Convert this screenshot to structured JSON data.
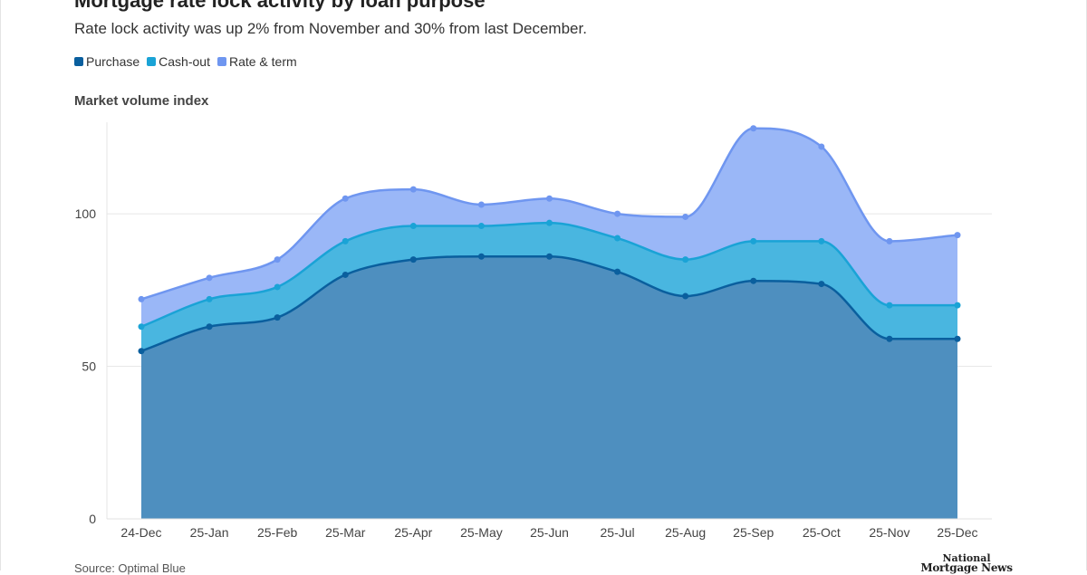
{
  "header": {
    "title": "Mortgage rate lock activity by loan purpose",
    "subtitle": "Rate lock activity was up 2% from November and 30% from last December."
  },
  "legend": [
    {
      "label": "Purchase",
      "color": "#0a5f9e"
    },
    {
      "label": "Cash-out",
      "color": "#1aa3d6"
    },
    {
      "label": "Rate & term",
      "color": "#6f96f0"
    }
  ],
  "footer": {
    "source": "Source: Optimal Blue",
    "logo_line1": "National",
    "logo_line2": "Mortgage News"
  },
  "chart_data": {
    "type": "area",
    "stacked": true,
    "title": "Mortgage rate lock activity by loan purpose",
    "ylabel": "Market volume index",
    "xlabel": "",
    "categories": [
      "24-Dec",
      "25-Jan",
      "25-Feb",
      "25-Mar",
      "25-Apr",
      "25-May",
      "25-Jun",
      "25-Jul",
      "25-Aug",
      "25-Sep",
      "25-Oct",
      "25-Nov",
      "25-Dec"
    ],
    "yticks": [
      0,
      50,
      100
    ],
    "ylim": [
      0,
      130
    ],
    "grid": true,
    "series": [
      {
        "name": "Purchase",
        "color": "#0a5f9e",
        "fill": "#4e8fbf",
        "values": [
          55,
          63,
          66,
          80,
          85,
          86,
          86,
          81,
          73,
          78,
          77,
          59,
          59
        ]
      },
      {
        "name": "Cash-out",
        "color": "#1aa3d6",
        "fill": "#49b6e0",
        "values": [
          8,
          9,
          10,
          11,
          11,
          10,
          11,
          11,
          12,
          13,
          14,
          11,
          11
        ]
      },
      {
        "name": "Rate & term",
        "color": "#6f96f0",
        "fill": "#9ab7f7",
        "values": [
          9,
          7,
          9,
          14,
          12,
          7,
          8,
          8,
          14,
          37,
          31,
          21,
          23
        ]
      }
    ]
  }
}
